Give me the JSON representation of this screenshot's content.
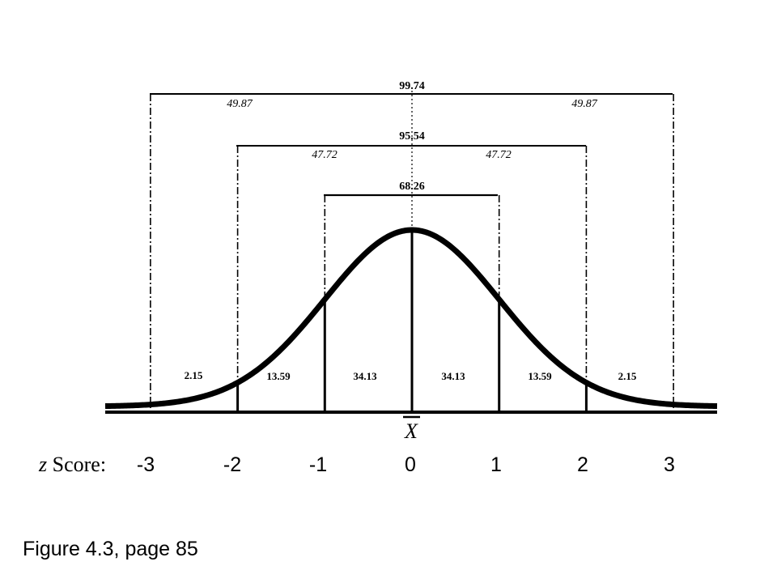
{
  "distribution": {
    "mean_label": "X",
    "z_axis_label_italic": "z",
    "z_axis_label_rest": " Score:",
    "z_values": [
      "-3",
      "-2",
      "-1",
      "0",
      "1",
      "2",
      "3"
    ],
    "segment_percents": [
      "2.15",
      "13.59",
      "34.13",
      "34.13",
      "13.59",
      "2.15"
    ],
    "brackets": [
      {
        "range": [
          -1,
          1
        ],
        "total": "68.26",
        "half": ""
      },
      {
        "range": [
          -2,
          2
        ],
        "total": "95.54",
        "half": "47.72"
      },
      {
        "range": [
          -3,
          3
        ],
        "total": "99.74",
        "half": "49.87"
      }
    ]
  },
  "caption": "Figure 4.3, page 85"
}
